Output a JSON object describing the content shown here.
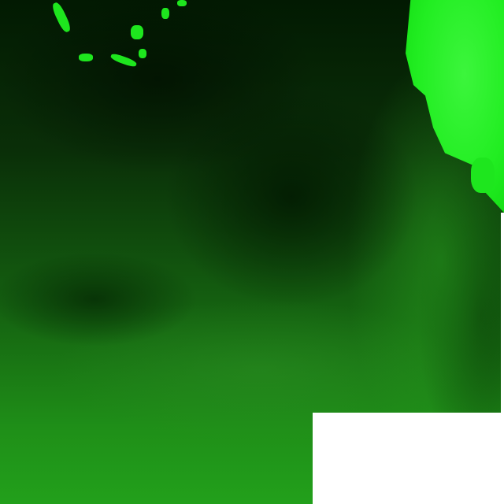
{
  "image": {
    "subject": "satellite-imagery-green-channel",
    "colors": {
      "dark": "#021a02",
      "mid": "#145f10",
      "bright": "#22a01b",
      "cloud": "#22ee22",
      "nodata": "#ffffff"
    }
  }
}
